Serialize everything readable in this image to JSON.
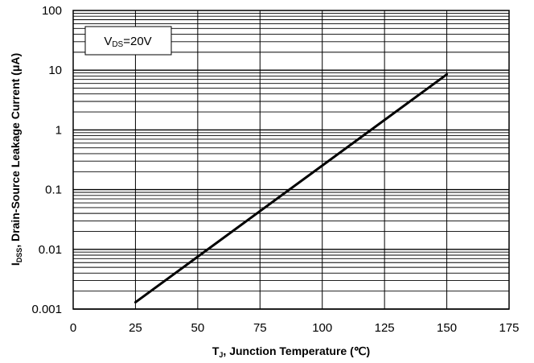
{
  "chart_data": {
    "type": "line",
    "xlabel": {
      "main": "T",
      "sub": "J",
      "rest": ", Junction Temperature (℃)"
    },
    "ylabel": {
      "main": "I",
      "sub": "DSS",
      "rest": ", Drain-Source Leakage Current (μA)"
    },
    "xlim": [
      0,
      175
    ],
    "ylim": [
      0.001,
      100
    ],
    "yscale": "log",
    "grid": true,
    "x_ticks": [
      0,
      25,
      50,
      75,
      100,
      125,
      150,
      175
    ],
    "x_tick_labels": [
      "0",
      "25",
      "50",
      "75",
      "100",
      "125",
      "150",
      "175"
    ],
    "y_ticks": [
      0.001,
      0.01,
      0.1,
      1,
      10,
      100
    ],
    "y_tick_labels": [
      "0.001",
      "0.01",
      "0.1",
      "1",
      "10",
      "100"
    ],
    "annotation": {
      "main": "V",
      "sub": "DS",
      "rest": "=20V"
    },
    "series": [
      {
        "x": [
          25,
          150
        ],
        "y": [
          0.0013,
          8.5
        ],
        "color": "#000000"
      }
    ]
  }
}
